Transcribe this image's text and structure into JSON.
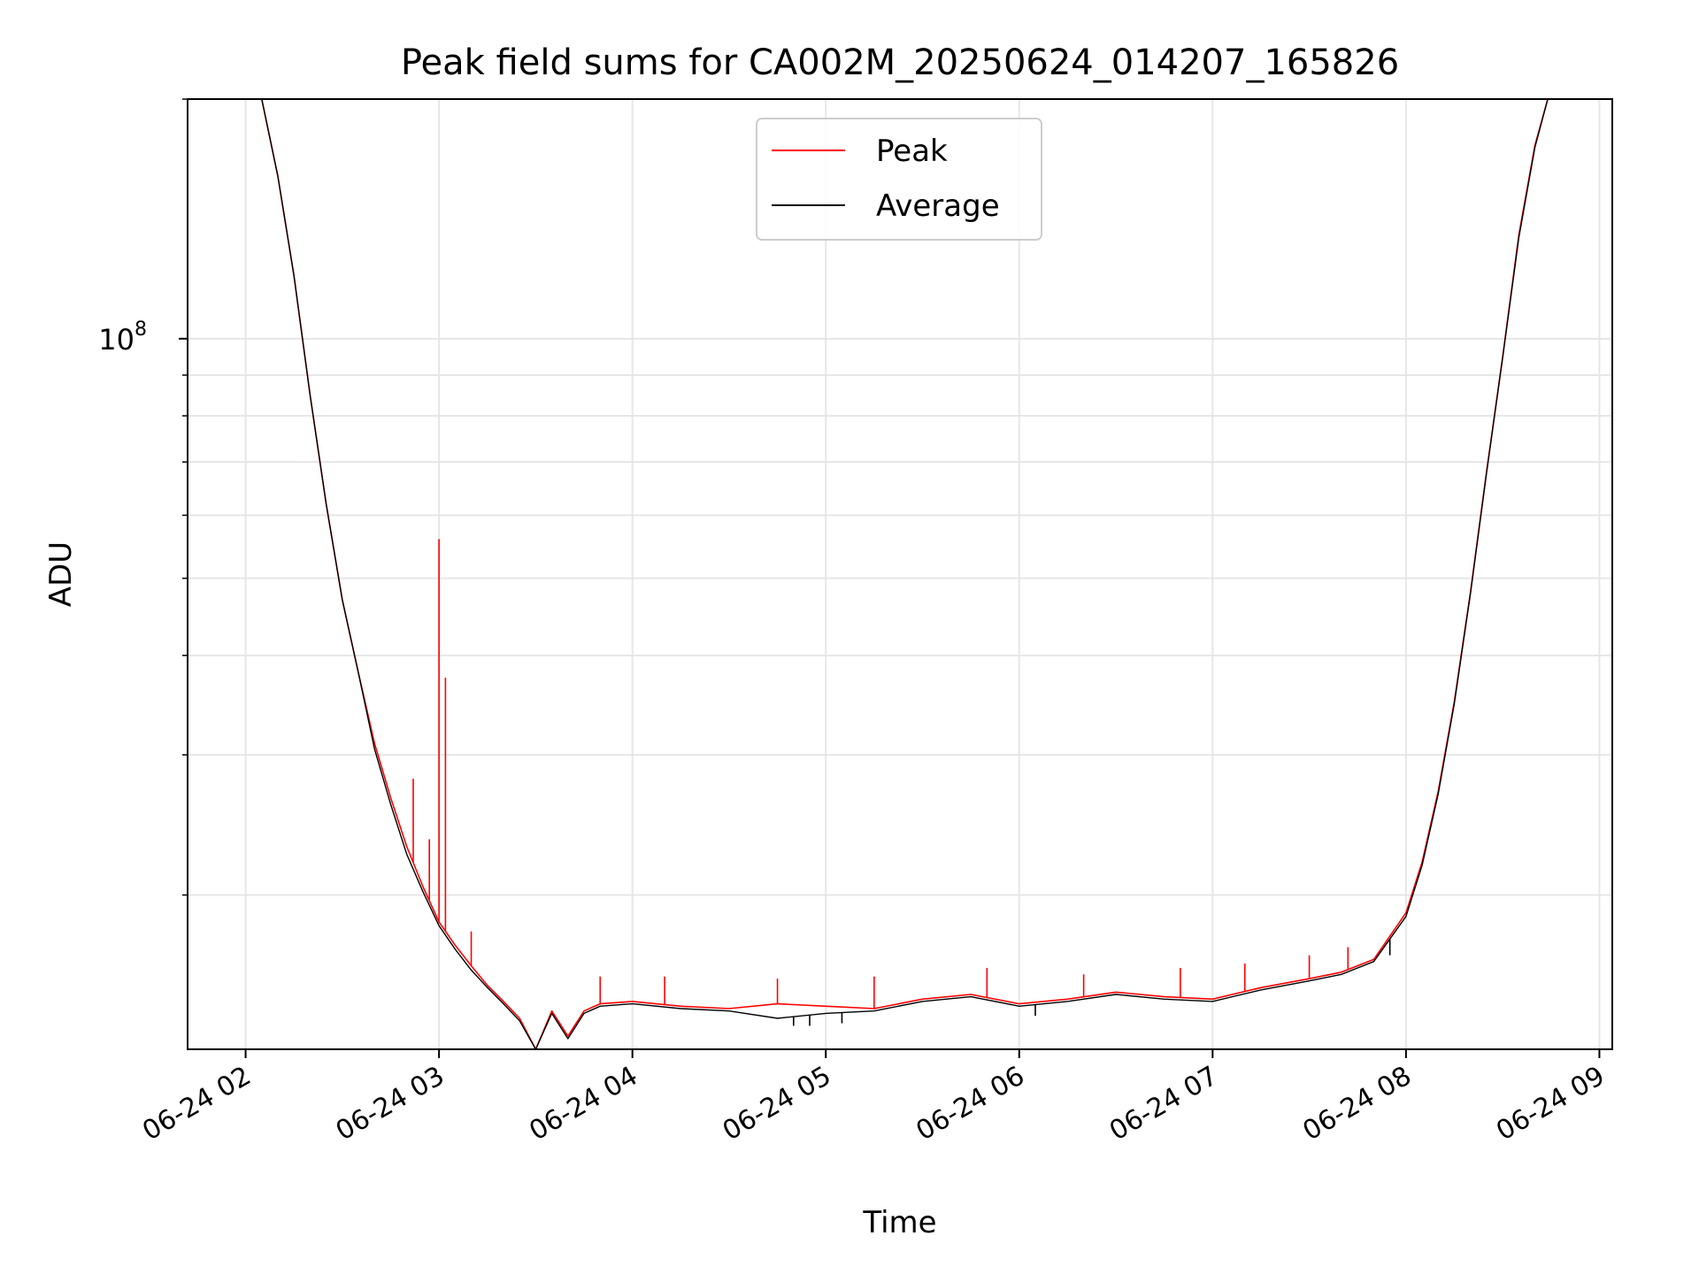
{
  "chart_data": {
    "type": "line",
    "title": "Peak field sums for CA002M_20250624_014207_165826",
    "xlabel": "Time",
    "ylabel": "ADU",
    "y_scale": "log",
    "xlim": [
      "2025-06-24 01:42",
      "2025-06-24 09:04"
    ],
    "ylim": [
      12800000.0,
      200000000.0
    ],
    "x_ticks": [
      {
        "value": "2025-06-24 02:00",
        "label": "06-24 02"
      },
      {
        "value": "2025-06-24 03:00",
        "label": "06-24 03"
      },
      {
        "value": "2025-06-24 04:00",
        "label": "06-24 04"
      },
      {
        "value": "2025-06-24 05:00",
        "label": "06-24 05"
      },
      {
        "value": "2025-06-24 06:00",
        "label": "06-24 06"
      },
      {
        "value": "2025-06-24 07:00",
        "label": "06-24 07"
      },
      {
        "value": "2025-06-24 08:00",
        "label": "06-24 08"
      },
      {
        "value": "2025-06-24 09:00",
        "label": "06-24 09"
      }
    ],
    "y_major_ticks": [
      {
        "value": 100000000,
        "label_base": "10",
        "label_exp": "8"
      }
    ],
    "y_minor_ticks": [
      20000000,
      30000000,
      40000000,
      50000000,
      60000000,
      70000000,
      80000000,
      90000000,
      200000000
    ],
    "grid": true,
    "legend_position": "top-center",
    "series": [
      {
        "name": "Peak",
        "color": "#ff0000",
        "x": [
          "2025-06-24 02:05",
          "2025-06-24 02:10",
          "2025-06-24 02:15",
          "2025-06-24 02:20",
          "2025-06-24 02:25",
          "2025-06-24 02:30",
          "2025-06-24 02:35",
          "2025-06-24 02:40",
          "2025-06-24 02:45",
          "2025-06-24 02:50",
          "2025-06-24 02:55",
          "2025-06-24 03:00",
          "2025-06-24 03:05",
          "2025-06-24 03:10",
          "2025-06-24 03:15",
          "2025-06-24 03:20",
          "2025-06-24 03:25",
          "2025-06-24 03:30",
          "2025-06-24 03:35",
          "2025-06-24 03:40",
          "2025-06-24 03:45",
          "2025-06-24 03:50",
          "2025-06-24 04:00",
          "2025-06-24 04:15",
          "2025-06-24 04:30",
          "2025-06-24 04:45",
          "2025-06-24 05:00",
          "2025-06-24 05:15",
          "2025-06-24 05:30",
          "2025-06-24 05:45",
          "2025-06-24 06:00",
          "2025-06-24 06:15",
          "2025-06-24 06:30",
          "2025-06-24 06:45",
          "2025-06-24 07:00",
          "2025-06-24 07:15",
          "2025-06-24 07:30",
          "2025-06-24 07:40",
          "2025-06-24 07:50",
          "2025-06-24 08:00",
          "2025-06-24 08:05",
          "2025-06-24 08:10",
          "2025-06-24 08:15",
          "2025-06-24 08:20",
          "2025-06-24 08:25",
          "2025-06-24 08:30",
          "2025-06-24 08:35",
          "2025-06-24 08:40",
          "2025-06-24 08:44"
        ],
        "y": [
          200000000,
          160000000,
          120000000,
          85000000,
          62000000,
          47000000,
          38000000,
          31000000,
          26500000,
          23000000,
          20500000,
          18500000,
          17300000,
          16300000,
          15400000,
          14700000,
          14000000,
          12800000,
          14300000,
          13300000,
          14300000,
          14600000,
          14700000,
          14500000,
          14400000,
          14600000,
          14500000,
          14400000,
          14800000,
          15000000,
          14600000,
          14800000,
          15100000,
          14900000,
          14800000,
          15300000,
          15700000,
          16000000,
          16600000,
          19000000,
          22000000,
          27000000,
          35000000,
          48000000,
          68000000,
          95000000,
          135000000,
          175000000,
          200000000
        ],
        "spikes": [
          {
            "x": "2025-06-24 02:52",
            "y": 28000000
          },
          {
            "x": "2025-06-24 02:57",
            "y": 23500000
          },
          {
            "x": "2025-06-24 03:00",
            "y": 56000000
          },
          {
            "x": "2025-06-24 03:02",
            "y": 37500000
          },
          {
            "x": "2025-06-24 03:10",
            "y": 18000000
          },
          {
            "x": "2025-06-24 03:50",
            "y": 15800000
          },
          {
            "x": "2025-06-24 04:10",
            "y": 15800000
          },
          {
            "x": "2025-06-24 04:45",
            "y": 15700000
          },
          {
            "x": "2025-06-24 05:15",
            "y": 15800000
          },
          {
            "x": "2025-06-24 05:50",
            "y": 16200000
          },
          {
            "x": "2025-06-24 06:20",
            "y": 15900000
          },
          {
            "x": "2025-06-24 06:50",
            "y": 16200000
          },
          {
            "x": "2025-06-24 07:10",
            "y": 16400000
          },
          {
            "x": "2025-06-24 07:30",
            "y": 16800000
          },
          {
            "x": "2025-06-24 07:42",
            "y": 17200000
          }
        ]
      },
      {
        "name": "Average",
        "color": "#000000",
        "x": [
          "2025-06-24 02:05",
          "2025-06-24 02:10",
          "2025-06-24 02:15",
          "2025-06-24 02:20",
          "2025-06-24 02:25",
          "2025-06-24 02:30",
          "2025-06-24 02:35",
          "2025-06-24 02:40",
          "2025-06-24 02:45",
          "2025-06-24 02:50",
          "2025-06-24 02:55",
          "2025-06-24 03:00",
          "2025-06-24 03:05",
          "2025-06-24 03:10",
          "2025-06-24 03:15",
          "2025-06-24 03:20",
          "2025-06-24 03:25",
          "2025-06-24 03:30",
          "2025-06-24 03:35",
          "2025-06-24 03:40",
          "2025-06-24 03:45",
          "2025-06-24 03:50",
          "2025-06-24 04:00",
          "2025-06-24 04:15",
          "2025-06-24 04:30",
          "2025-06-24 04:45",
          "2025-06-24 05:00",
          "2025-06-24 05:15",
          "2025-06-24 05:30",
          "2025-06-24 05:45",
          "2025-06-24 06:00",
          "2025-06-24 06:15",
          "2025-06-24 06:30",
          "2025-06-24 06:45",
          "2025-06-24 07:00",
          "2025-06-24 07:15",
          "2025-06-24 07:30",
          "2025-06-24 07:40",
          "2025-06-24 07:50",
          "2025-06-24 08:00",
          "2025-06-24 08:05",
          "2025-06-24 08:10",
          "2025-06-24 08:15",
          "2025-06-24 08:20",
          "2025-06-24 08:25",
          "2025-06-24 08:30",
          "2025-06-24 08:35",
          "2025-06-24 08:40",
          "2025-06-24 08:44"
        ],
        "y": [
          200000000,
          160000000,
          120000000,
          85000000,
          62000000,
          47000000,
          38000000,
          30500000,
          26000000,
          22500000,
          20200000,
          18300000,
          17100000,
          16100000,
          15300000,
          14600000,
          13900000,
          12800000,
          14200000,
          13200000,
          14200000,
          14500000,
          14600000,
          14400000,
          14300000,
          14000000,
          14200000,
          14300000,
          14700000,
          14900000,
          14500000,
          14700000,
          15000000,
          14800000,
          14700000,
          15200000,
          15600000,
          15900000,
          16500000,
          18800000,
          21800000,
          26800000,
          34800000,
          47800000,
          67800000,
          94800000,
          134000000,
          174000000,
          200000000
        ],
        "dips": [
          {
            "x": "2025-06-24 04:50",
            "y": 13700000
          },
          {
            "x": "2025-06-24 04:55",
            "y": 13700000
          },
          {
            "x": "2025-06-24 05:05",
            "y": 13800000
          },
          {
            "x": "2025-06-24 06:05",
            "y": 14100000
          },
          {
            "x": "2025-06-24 07:55",
            "y": 16800000
          }
        ]
      }
    ]
  }
}
